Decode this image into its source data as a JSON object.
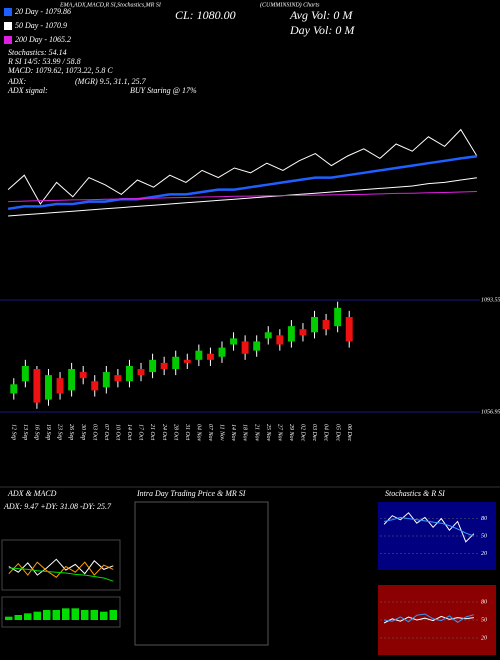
{
  "header": {
    "studies": "EMA,ADX,MACD,R SI,Stochastics,MR SI",
    "symbol": "(CUMMINSIND) Charts",
    "cl": "CL: 1080.00",
    "avg_vol": "Avg Vol: 0  M",
    "day_vol": "Day Vol: 0  M",
    "stats": [
      "Stochastics: 54.14",
      "R SI 14/5: 53.99 / 58.8",
      "MACD: 1079.62, 1073.22, 5.8  C"
    ],
    "adx_label": "ADX:",
    "adx_values": "(MGR) 9.5, 31.1, 25.7",
    "signal_label": "ADX  signal:",
    "signal": "BUY Staring @ 17%"
  },
  "panels": {
    "adx_title": "ADX  & MACD",
    "adx_readout": "ADX: 9.47  +DY: 31.08  -DY: 25.7",
    "intraday_title": "Intra Day Trading Price  & MR SI",
    "stoch_title": "Stochastics & R SI"
  },
  "chart_data": [
    {
      "type": "line",
      "ylim": [
        1045,
        1095
      ],
      "series": [
        {
          "color": "#ffffff",
          "values": [
            1066,
            1072,
            1060,
            1069,
            1063,
            1071,
            1068,
            1064,
            1070,
            1067,
            1072,
            1069,
            1074,
            1071,
            1075,
            1073,
            1077,
            1074,
            1078,
            1081,
            1076,
            1080,
            1083,
            1079,
            1085,
            1082,
            1088,
            1084,
            1091,
            1080
          ]
        },
        {
          "name": "20 Day - 1079.86",
          "color": "#1e5fff",
          "values": [
            1058,
            1059,
            1059,
            1060,
            1060,
            1061,
            1061,
            1062,
            1062,
            1063,
            1064,
            1064,
            1065,
            1066,
            1066,
            1067,
            1068,
            1069,
            1070,
            1071,
            1071,
            1072,
            1073,
            1074,
            1075,
            1076,
            1077,
            1078,
            1079,
            1079.86
          ]
        },
        {
          "name": "50 Day - 1070.9",
          "color": "#ffffff",
          "values": [
            1055,
            1055.5,
            1056,
            1056.5,
            1057,
            1057.5,
            1058,
            1058.5,
            1059,
            1059.5,
            1060,
            1060.5,
            1061,
            1061.5,
            1062,
            1062.5,
            1063,
            1063.5,
            1064,
            1064.5,
            1065,
            1065.5,
            1066,
            1066.5,
            1067,
            1067.5,
            1068.5,
            1069,
            1070,
            1070.9
          ]
        },
        {
          "name": "200 Day - 1065.2",
          "color": "#e020e0",
          "values": [
            1061,
            1061.2,
            1061.4,
            1061.5,
            1061.7,
            1061.8,
            1062,
            1062.1,
            1062.3,
            1062.4,
            1062.6,
            1062.7,
            1062.9,
            1063,
            1063.2,
            1063.3,
            1063.4,
            1063.5,
            1063.6,
            1063.7,
            1063.8,
            1063.9,
            1064,
            1064.2,
            1064.4,
            1064.5,
            1064.7,
            1064.8,
            1065,
            1065.2
          ]
        }
      ]
    },
    {
      "type": "candlestick",
      "ylim": [
        1056.95,
        1093.55
      ],
      "yticks": [
        1093.55,
        1056.95
      ],
      "categories": [
        "12 Sep",
        "13 Sep",
        "16 Sep",
        "19 Sep",
        "23 Sep",
        "26 Sep",
        "30 Sep",
        "03 Oct",
        "07 Oct",
        "10 Oct",
        "14 Oct",
        "17 Oct",
        "21 Oct",
        "24 Oct",
        "28 Oct",
        "31 Oct",
        "04 Nov",
        "07 Nov",
        "11 Nov",
        "14 Nov",
        "18 Nov",
        "21 Nov",
        "25 Nov",
        "27 Nov",
        "29 Nov",
        "02 Dec",
        "03 Dec",
        "04 Dec",
        "05 Dec",
        "06 Dec"
      ],
      "open": [
        1063,
        1067,
        1071,
        1061,
        1068,
        1064,
        1070,
        1067,
        1065,
        1069,
        1067,
        1071,
        1070,
        1073,
        1071,
        1074,
        1074,
        1076,
        1075,
        1079,
        1080,
        1077,
        1081,
        1082,
        1080,
        1084,
        1083,
        1087,
        1085,
        1088
      ],
      "high": [
        1068,
        1074,
        1072,
        1071,
        1070,
        1073,
        1072,
        1069,
        1072,
        1071,
        1074,
        1073,
        1076,
        1075,
        1077,
        1076,
        1079,
        1078,
        1080,
        1083,
        1082,
        1082,
        1085,
        1084,
        1087,
        1086,
        1090,
        1089,
        1093,
        1090
      ],
      "low": [
        1061,
        1065,
        1058,
        1059,
        1061,
        1062,
        1066,
        1062,
        1063,
        1065,
        1065,
        1067,
        1068,
        1069,
        1069,
        1071,
        1072,
        1072,
        1073,
        1077,
        1074,
        1075,
        1079,
        1077,
        1078,
        1080,
        1081,
        1082,
        1083,
        1078
      ],
      "close": [
        1066,
        1072,
        1060,
        1069,
        1063,
        1071,
        1068,
        1064,
        1070,
        1067,
        1072,
        1069,
        1074,
        1071,
        1075,
        1073,
        1077,
        1074,
        1078,
        1081,
        1076,
        1080,
        1083,
        1079,
        1085,
        1082,
        1088,
        1084,
        1091,
        1080
      ]
    },
    {
      "type": "line",
      "ylim": [
        0,
        60
      ],
      "series": [
        {
          "color": "#ffffff",
          "values": [
            30,
            22,
            35,
            18,
            28,
            40,
            25,
            33,
            20,
            38,
            26,
            31
          ]
        },
        {
          "color": "#ff9900",
          "values": [
            20,
            34,
            18,
            36,
            24,
            15,
            30,
            22,
            36,
            18,
            32,
            26
          ]
        },
        {
          "color": "#00dd00",
          "values": [
            28,
            27,
            26,
            24,
            23,
            22,
            21,
            19,
            18,
            16,
            14,
            9.5
          ]
        }
      ]
    },
    {
      "type": "bar",
      "ylim": [
        -3,
        12
      ],
      "color": "#00dd00",
      "values": [
        2,
        3,
        4,
        5,
        6,
        6,
        7,
        7,
        6,
        6,
        5,
        6
      ]
    },
    {
      "type": "line",
      "ylim": [
        0,
        100
      ],
      "yticks": [
        80,
        50,
        20
      ],
      "series": [
        {
          "color": "#ffffff",
          "values": [
            70,
            85,
            78,
            90,
            72,
            82,
            65,
            80,
            60,
            75,
            40,
            54
          ]
        },
        {
          "color": "#3399ff",
          "values": [
            75,
            78,
            82,
            80,
            78,
            76,
            74,
            72,
            68,
            62,
            55,
            50
          ]
        }
      ]
    },
    {
      "type": "line",
      "ylim": [
        0,
        100
      ],
      "yticks": [
        80,
        50,
        20
      ],
      "series": [
        {
          "color": "#ffffff",
          "values": [
            45,
            52,
            48,
            55,
            50,
            53,
            49,
            56,
            51,
            54,
            52,
            54
          ]
        },
        {
          "color": "#3399ff",
          "values": [
            50,
            48,
            55,
            47,
            58,
            60,
            52,
            49,
            57,
            46,
            55,
            58.8
          ]
        }
      ]
    }
  ]
}
